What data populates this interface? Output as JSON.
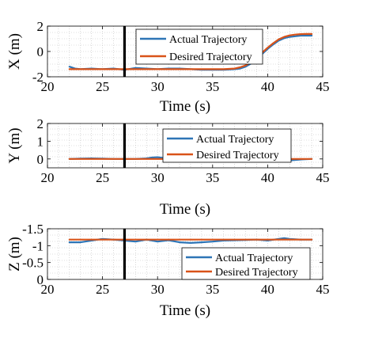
{
  "chart_data": [
    {
      "type": "line",
      "xlabel": "Time (s)",
      "ylabel": "X (m)",
      "xlim": [
        20,
        45
      ],
      "ylim": [
        -2,
        2
      ],
      "y_reversed": false,
      "xticks": [
        "20",
        "25",
        "30",
        "35",
        "40",
        "45"
      ],
      "yticks": [
        "-2",
        "0",
        "2"
      ],
      "ytick_values": [
        -2,
        0,
        2
      ],
      "grid": "minor dotted",
      "legend_position": "top-right",
      "vline_x": 27,
      "series": [
        {
          "name": "Actual Trajectory",
          "color": "#2e75b6",
          "x": [
            22,
            22.5,
            23,
            24,
            25,
            26,
            27,
            28,
            29,
            30,
            31,
            32,
            33,
            34,
            35,
            36,
            37,
            37.5,
            38,
            38.5,
            39,
            39.5,
            40,
            40.5,
            41,
            41.5,
            42,
            42.5,
            43,
            43.5,
            44
          ],
          "y": [
            -1.2,
            -1.35,
            -1.4,
            -1.35,
            -1.4,
            -1.35,
            -1.45,
            -1.3,
            -1.35,
            -1.4,
            -1.35,
            -1.35,
            -1.4,
            -1.45,
            -1.45,
            -1.45,
            -1.4,
            -1.35,
            -1.2,
            -0.95,
            -0.6,
            -0.2,
            0.2,
            0.55,
            0.85,
            1.05,
            1.15,
            1.2,
            1.25,
            1.25,
            1.25
          ]
        },
        {
          "name": "Desired Trajectory",
          "color": "#d95319",
          "x": [
            22,
            22.5,
            23,
            24,
            25,
            26,
            27,
            28,
            29,
            30,
            31,
            32,
            33,
            34,
            35,
            36,
            37,
            37.5,
            38,
            38.5,
            39,
            39.5,
            40,
            40.5,
            41,
            41.5,
            42,
            42.5,
            43,
            43.5,
            44
          ],
          "y": [
            -1.4,
            -1.4,
            -1.4,
            -1.4,
            -1.4,
            -1.4,
            -1.4,
            -1.4,
            -1.4,
            -1.4,
            -1.4,
            -1.4,
            -1.4,
            -1.4,
            -1.4,
            -1.4,
            -1.35,
            -1.25,
            -1.1,
            -0.85,
            -0.5,
            -0.1,
            0.3,
            0.65,
            0.95,
            1.15,
            1.27,
            1.33,
            1.37,
            1.38,
            1.38
          ]
        }
      ]
    },
    {
      "type": "line",
      "xlabel": "Time (s)",
      "ylabel": "Y (m)",
      "xlim": [
        20,
        45
      ],
      "ylim": [
        -0.5,
        2
      ],
      "y_reversed": false,
      "xticks": [
        "20",
        "25",
        "30",
        "35",
        "40",
        "45"
      ],
      "yticks": [
        "0",
        "1",
        "2"
      ],
      "ytick_values": [
        0,
        1,
        2
      ],
      "grid": "minor dotted",
      "legend_position": "top-right",
      "vline_x": 27,
      "series": [
        {
          "name": "Actual Trajectory",
          "color": "#2e75b6",
          "x": [
            22,
            23,
            24,
            25,
            26,
            27,
            28,
            29,
            29.5,
            30,
            30.5,
            31,
            32,
            33,
            34,
            35,
            36,
            37,
            38,
            39,
            40,
            41,
            41.5,
            42,
            43,
            44
          ],
          "y": [
            0.0,
            0.02,
            0.03,
            0.02,
            0.0,
            0.0,
            0.0,
            0.03,
            0.08,
            0.1,
            0.06,
            0.02,
            0.0,
            0.0,
            0.02,
            0.05,
            0.08,
            0.07,
            0.03,
            0.0,
            -0.03,
            -0.08,
            -0.1,
            -0.08,
            -0.03,
            0.0
          ]
        },
        {
          "name": "Desired Trajectory",
          "color": "#d95319",
          "x": [
            22,
            44
          ],
          "y": [
            0.0,
            0.0
          ]
        }
      ]
    },
    {
      "type": "line",
      "xlabel": "Time (s)",
      "ylabel": "Z (m)",
      "xlim": [
        20,
        45
      ],
      "ylim": [
        -1.5,
        0
      ],
      "y_reversed": true,
      "xticks": [
        "20",
        "25",
        "30",
        "35",
        "40",
        "45"
      ],
      "yticks": [
        "-1.5",
        "-1",
        "-0.5",
        "0"
      ],
      "ytick_values": [
        -1.5,
        -1,
        -0.5,
        0
      ],
      "grid": "minor dotted",
      "legend_position": "bottom-right",
      "vline_x": 27,
      "series": [
        {
          "name": "Actual Trajectory",
          "color": "#2e75b6",
          "x": [
            22,
            23,
            24,
            25,
            26,
            27,
            28,
            29,
            30,
            31,
            32,
            33,
            34,
            35,
            36,
            37,
            38,
            39,
            40,
            41,
            41.5,
            42,
            43,
            44
          ],
          "y": [
            -1.1,
            -1.1,
            -1.15,
            -1.2,
            -1.18,
            -1.15,
            -1.12,
            -1.18,
            -1.12,
            -1.16,
            -1.1,
            -1.08,
            -1.1,
            -1.12,
            -1.15,
            -1.16,
            -1.17,
            -1.18,
            -1.15,
            -1.2,
            -1.22,
            -1.2,
            -1.18,
            -1.18
          ]
        },
        {
          "name": "Desired Trajectory",
          "color": "#d95319",
          "x": [
            22,
            44
          ],
          "y": [
            -1.18,
            -1.18
          ]
        }
      ]
    }
  ]
}
